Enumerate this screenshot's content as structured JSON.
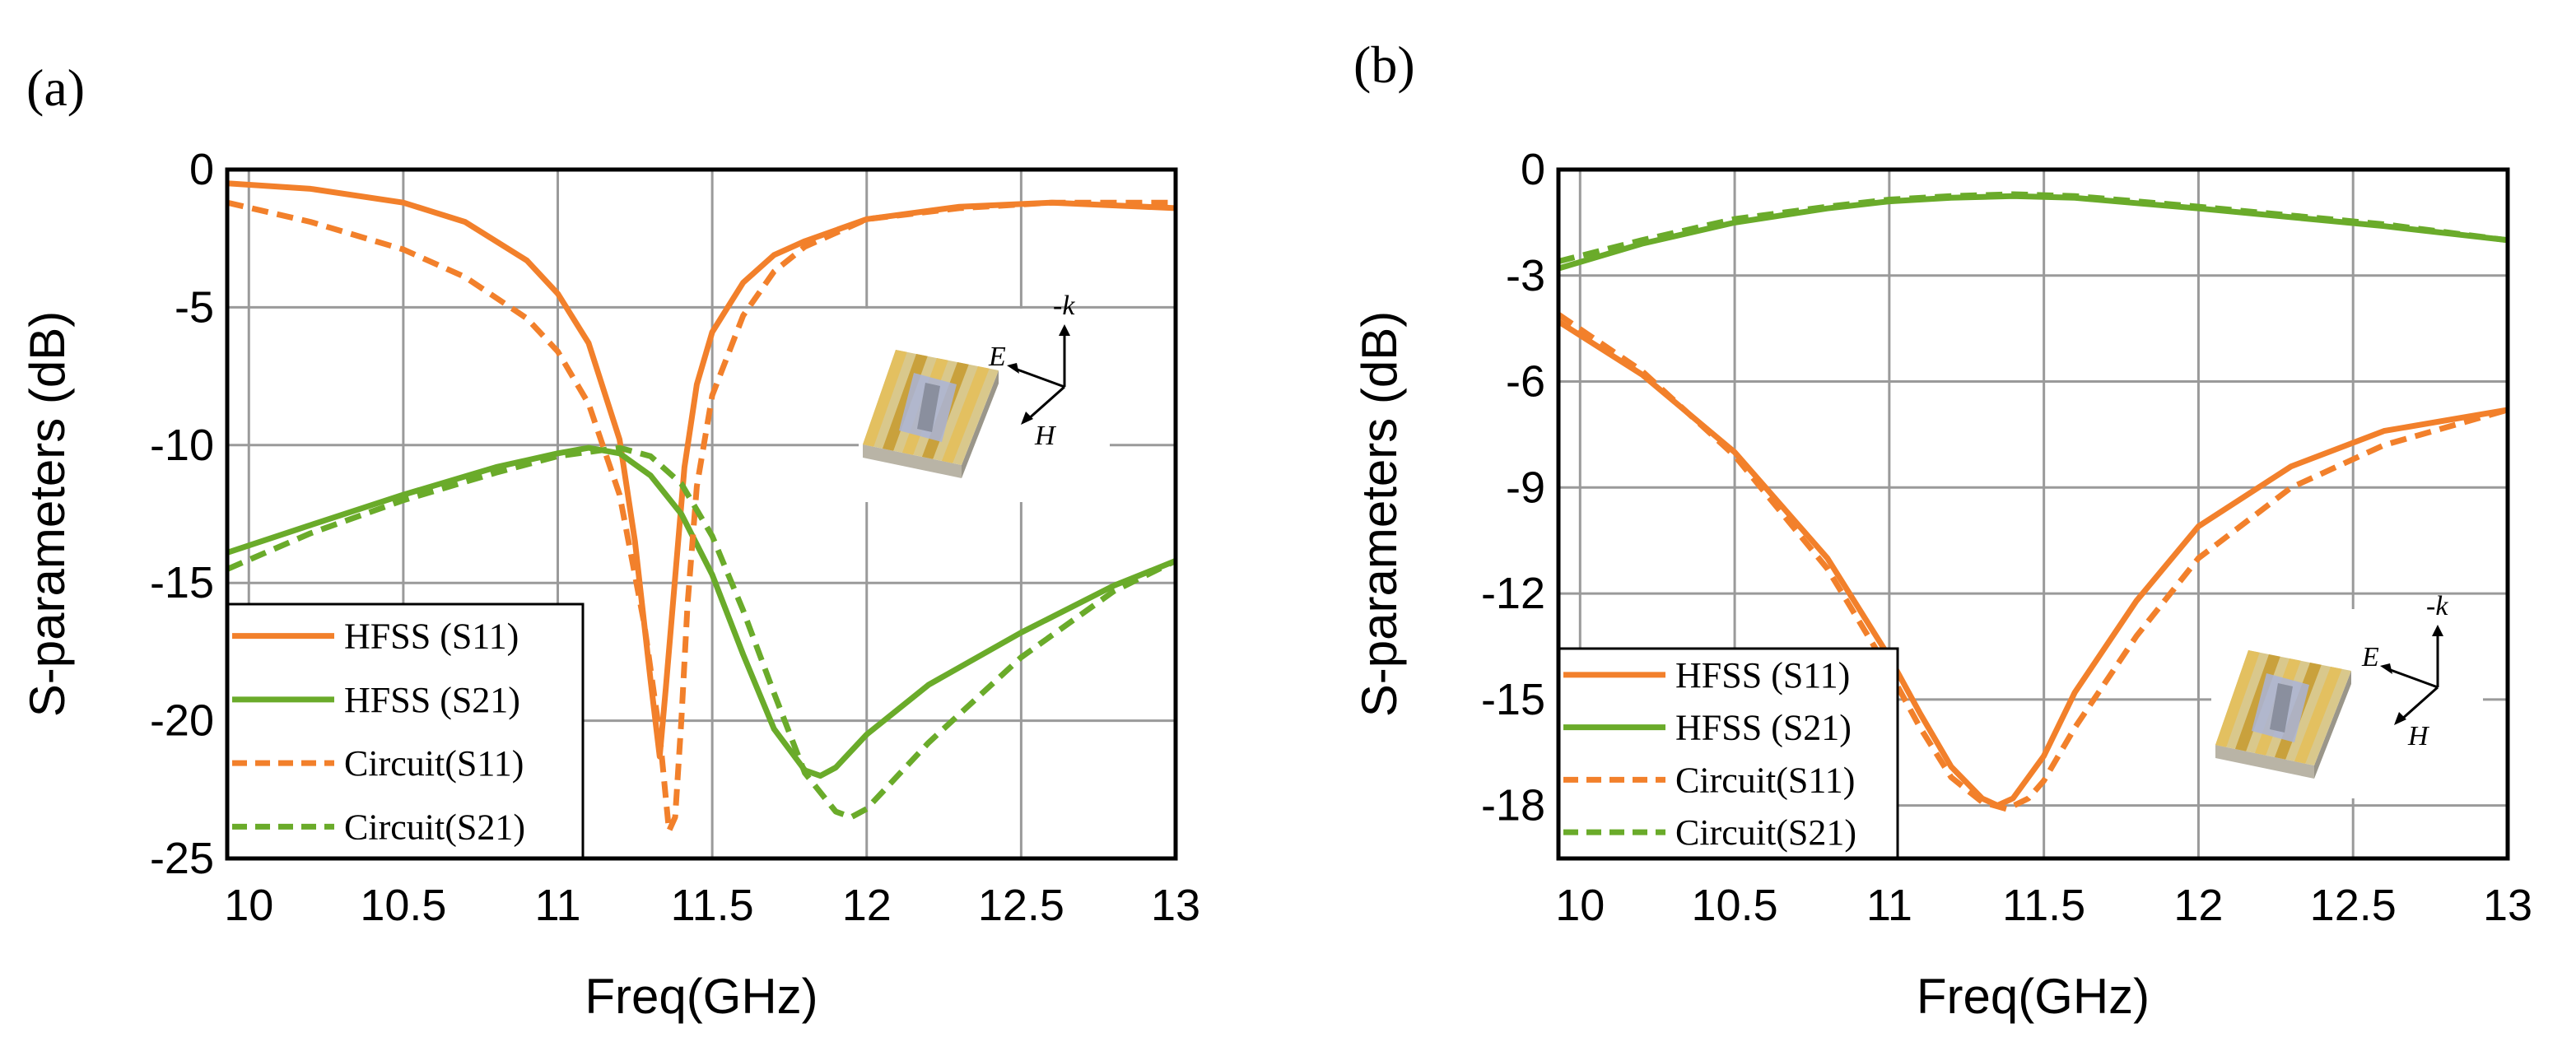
{
  "colors": {
    "s11": "#f2802b",
    "s21": "#6aab2a",
    "grid": "#9a9a9a",
    "axis": "#000000",
    "inset_bg": "#ffffff"
  },
  "chart_data": [
    {
      "panel_label": "(a)",
      "type": "line",
      "xlabel": "Freq(GHz)",
      "ylabel": "S-parameters (dB)",
      "xlim": [
        9.93,
        13
      ],
      "ylim": [
        -25,
        0
      ],
      "xticks": [
        10,
        10.5,
        11,
        11.5,
        12,
        12.5,
        13
      ],
      "xtick_labels": [
        "10",
        "10.5",
        "11",
        "11.5",
        "12",
        "12.5",
        "13"
      ],
      "yticks": [
        0,
        -5,
        -10,
        -15,
        -20,
        -25
      ],
      "ytick_labels": [
        "0",
        "-5",
        "-10",
        "-15",
        "-20",
        "-25"
      ],
      "legend": {
        "position": "bottom-left",
        "entries": [
          "HFSS (S11)",
          "HFSS (S21)",
          "Circuit(S11)",
          "Circuit(S21)"
        ]
      },
      "inset_labels": {
        "k": "-k",
        "e": "E",
        "h": "H"
      },
      "series": [
        {
          "name": "HFSS (S11)",
          "color_key": "s11",
          "dashed": false,
          "x": [
            9.93,
            10.2,
            10.5,
            10.7,
            10.9,
            11.0,
            11.1,
            11.2,
            11.25,
            11.3,
            11.33,
            11.35,
            11.38,
            11.41,
            11.45,
            11.5,
            11.6,
            11.7,
            11.8,
            12.0,
            12.3,
            12.6,
            13.0
          ],
          "y": [
            -0.5,
            -0.7,
            -1.2,
            -1.9,
            -3.3,
            -4.5,
            -6.3,
            -9.8,
            -13.5,
            -18.5,
            -21.3,
            -18.8,
            -14.8,
            -10.8,
            -7.8,
            -5.9,
            -4.1,
            -3.1,
            -2.6,
            -1.8,
            -1.35,
            -1.2,
            -1.4
          ]
        },
        {
          "name": "HFSS (S21)",
          "color_key": "s21",
          "dashed": false,
          "x": [
            9.93,
            10.2,
            10.5,
            10.8,
            11.0,
            11.1,
            11.2,
            11.3,
            11.4,
            11.5,
            11.6,
            11.7,
            11.8,
            11.85,
            11.9,
            12.0,
            12.2,
            12.5,
            12.8,
            13.0
          ],
          "y": [
            -13.9,
            -12.9,
            -11.8,
            -10.8,
            -10.3,
            -10.1,
            -10.3,
            -11.1,
            -12.5,
            -14.7,
            -17.6,
            -20.3,
            -21.8,
            -22.0,
            -21.7,
            -20.5,
            -18.7,
            -16.8,
            -15.1,
            -14.2
          ]
        },
        {
          "name": "Circuit(S11)",
          "color_key": "s11",
          "dashed": true,
          "x": [
            9.93,
            10.2,
            10.5,
            10.7,
            10.9,
            11.0,
            11.1,
            11.2,
            11.28,
            11.33,
            11.36,
            11.38,
            11.4,
            11.42,
            11.45,
            11.5,
            11.6,
            11.7,
            11.8,
            12.0,
            12.3,
            12.6,
            13.0
          ],
          "y": [
            -1.2,
            -1.9,
            -2.9,
            -3.9,
            -5.4,
            -6.6,
            -8.5,
            -11.8,
            -16.5,
            -20.5,
            -24.0,
            -23.5,
            -20.0,
            -15.8,
            -11.5,
            -8.2,
            -5.3,
            -3.7,
            -2.8,
            -1.8,
            -1.4,
            -1.2,
            -1.2
          ]
        },
        {
          "name": "Circuit(S21)",
          "color_key": "s21",
          "dashed": true,
          "x": [
            9.93,
            10.2,
            10.5,
            10.8,
            11.0,
            11.2,
            11.3,
            11.4,
            11.5,
            11.6,
            11.7,
            11.8,
            11.9,
            11.95,
            12.0,
            12.2,
            12.5,
            12.8,
            13.0
          ],
          "y": [
            -14.5,
            -13.2,
            -12.0,
            -11.0,
            -10.4,
            -10.1,
            -10.4,
            -11.4,
            -13.3,
            -16.0,
            -19.0,
            -21.9,
            -23.3,
            -23.5,
            -23.2,
            -20.8,
            -17.7,
            -15.3,
            -14.2
          ]
        }
      ]
    },
    {
      "panel_label": "(b)",
      "type": "line",
      "xlabel": "Freq(GHz)",
      "ylabel": "S-parameters (dB)",
      "xlim": [
        9.93,
        13
      ],
      "ylim": [
        -19.5,
        0
      ],
      "xticks": [
        10,
        10.5,
        11,
        11.5,
        12,
        12.5,
        13
      ],
      "xtick_labels": [
        "10",
        "10.5",
        "11",
        "11.5",
        "12",
        "12.5",
        "13"
      ],
      "yticks": [
        0,
        -3,
        -6,
        -9,
        -12,
        -15,
        -18
      ],
      "ytick_labels": [
        "0",
        "-3",
        "-6",
        "-9",
        "-12",
        "-15",
        "-18"
      ],
      "legend": {
        "position": "bottom-left",
        "entries": [
          "HFSS (S11)",
          "HFSS (S21)",
          "Circuit(S11)",
          "Circuit(S21)"
        ]
      },
      "inset_labels": {
        "k": "-k",
        "e": "E",
        "h": "H"
      },
      "series": [
        {
          "name": "HFSS (S11)",
          "color_key": "s11",
          "dashed": false,
          "x": [
            9.93,
            10.2,
            10.5,
            10.8,
            11.0,
            11.1,
            11.2,
            11.3,
            11.35,
            11.4,
            11.5,
            11.6,
            11.8,
            12.0,
            12.3,
            12.6,
            13.0
          ],
          "y": [
            -4.3,
            -5.8,
            -8.0,
            -11.0,
            -13.8,
            -15.4,
            -16.9,
            -17.8,
            -18.0,
            -17.8,
            -16.6,
            -14.8,
            -12.2,
            -10.1,
            -8.4,
            -7.4,
            -6.8
          ]
        },
        {
          "name": "HFSS (S21)",
          "color_key": "s21",
          "dashed": false,
          "x": [
            9.93,
            10.2,
            10.5,
            10.8,
            11.0,
            11.2,
            11.4,
            11.6,
            11.8,
            12.0,
            12.3,
            12.6,
            13.0
          ],
          "y": [
            -2.8,
            -2.1,
            -1.5,
            -1.1,
            -0.9,
            -0.8,
            -0.75,
            -0.8,
            -0.95,
            -1.1,
            -1.35,
            -1.6,
            -2.0
          ]
        },
        {
          "name": "Circuit(S11)",
          "color_key": "s11",
          "dashed": true,
          "x": [
            9.93,
            10.2,
            10.5,
            10.8,
            11.0,
            11.1,
            11.2,
            11.3,
            11.38,
            11.45,
            11.5,
            11.6,
            11.8,
            12.0,
            12.3,
            12.6,
            13.0
          ],
          "y": [
            -4.1,
            -5.7,
            -8.1,
            -11.3,
            -14.2,
            -15.8,
            -17.2,
            -17.9,
            -18.1,
            -17.8,
            -17.3,
            -15.8,
            -13.2,
            -11.0,
            -9.0,
            -7.8,
            -6.8
          ]
        },
        {
          "name": "Circuit(S21)",
          "color_key": "s21",
          "dashed": true,
          "x": [
            9.93,
            10.2,
            10.5,
            10.8,
            11.0,
            11.2,
            11.4,
            11.6,
            11.8,
            12.0,
            12.3,
            12.6,
            13.0
          ],
          "y": [
            -2.6,
            -2.0,
            -1.4,
            -1.05,
            -0.85,
            -0.75,
            -0.7,
            -0.75,
            -0.9,
            -1.05,
            -1.3,
            -1.55,
            -2.0
          ]
        }
      ]
    }
  ]
}
